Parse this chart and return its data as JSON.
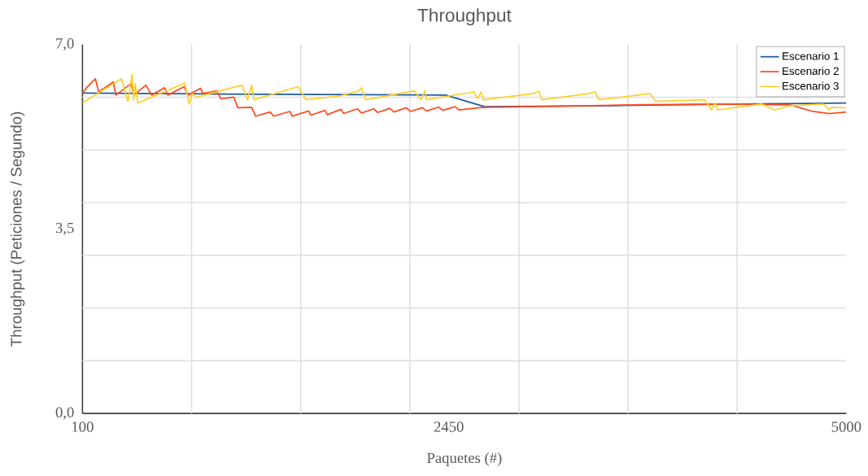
{
  "chart_data": {
    "type": "line",
    "title": "Throughput",
    "xlabel": "Paquetes (#)",
    "ylabel": "Throughput (Peticiones / Segundo)",
    "xlim": [
      100,
      5000
    ],
    "ylim": [
      0,
      7
    ],
    "xticks": [
      100,
      {
        "value": 800,
        "label": null
      },
      {
        "value": 1500,
        "label": null
      },
      {
        "value": 2200,
        "label": null
      },
      2450,
      {
        "value": 2900,
        "label": null
      },
      {
        "value": 3600,
        "label": null
      },
      {
        "value": 4300,
        "label": null
      },
      5000
    ],
    "yticks": [
      {
        "value": 0,
        "label": "0,0"
      },
      {
        "value": 1,
        "label": null
      },
      {
        "value": 2,
        "label": null
      },
      {
        "value": 3,
        "label": null
      },
      {
        "value": 3.5,
        "label": "3,5"
      },
      {
        "value": 4,
        "label": null
      },
      {
        "value": 5,
        "label": null
      },
      {
        "value": 6,
        "label": null
      },
      {
        "value": 7,
        "label": "7,0"
      }
    ],
    "grid": true,
    "legend": "top right",
    "marker": "none",
    "line_style": "solid",
    "series": [
      {
        "name": "Escenario 1",
        "color": "#1f5aa6",
        "x": [
          100,
          1000,
          2430,
          2680,
          3500,
          4300,
          5000
        ],
        "values": [
          6.08,
          6.06,
          6.04,
          5.82,
          5.84,
          5.87,
          5.89
        ]
      },
      {
        "name": "Escenario 2",
        "color": "#ff4b1f",
        "x": [
          100,
          126,
          152,
          183,
          204,
          298,
          314,
          413,
          429,
          507,
          544,
          627,
          648,
          752,
          778,
          857,
          872,
          961,
          987,
          1071,
          1097,
          1185,
          1211,
          1305,
          1326,
          1431,
          1446,
          1551,
          1566,
          1655,
          1671,
          1759,
          1775,
          1864,
          1890,
          1968,
          1994,
          2072,
          2098,
          2177,
          2203,
          2281,
          2307,
          2385,
          2412,
          2490,
          2516,
          2646,
          2700,
          3377,
          3742,
          4300,
          4645,
          4786,
          4890,
          5000
        ],
        "values": [
          6.07,
          6.18,
          6.26,
          6.35,
          6.1,
          6.29,
          6.04,
          6.26,
          6.04,
          6.23,
          6.04,
          6.18,
          6.04,
          6.2,
          6.04,
          6.17,
          6.07,
          6.12,
          5.97,
          6.0,
          5.8,
          5.81,
          5.64,
          5.72,
          5.64,
          5.73,
          5.64,
          5.74,
          5.66,
          5.75,
          5.67,
          5.77,
          5.69,
          5.78,
          5.7,
          5.78,
          5.71,
          5.79,
          5.72,
          5.8,
          5.73,
          5.8,
          5.74,
          5.81,
          5.75,
          5.82,
          5.76,
          5.8,
          5.81,
          5.84,
          5.86,
          5.87,
          5.85,
          5.73,
          5.69,
          5.72
        ]
      },
      {
        "name": "Escenario 3",
        "color": "#ffd02a",
        "x": [
          100,
          350,
          392,
          418,
          429,
          439,
          455,
          757,
          784,
          804,
          831,
          1123,
          1159,
          1185,
          1201,
          1483,
          1535,
          1759,
          1874,
          1890,
          1916,
          2229,
          2271,
          2297,
          2307,
          2610,
          2636,
          2657,
          2673,
          2996,
          3027,
          3048,
          3351,
          3388,
          3413,
          3742,
          3779,
          4092,
          4134,
          4160,
          4175,
          4457,
          4541,
          4645,
          4854,
          4890,
          4906,
          4995
        ],
        "values": [
          5.89,
          6.35,
          5.92,
          6.43,
          5.95,
          6.26,
          5.89,
          6.27,
          5.87,
          6.07,
          6.0,
          6.23,
          5.95,
          6.23,
          5.95,
          6.2,
          5.95,
          6.03,
          6.12,
          6.18,
          5.95,
          6.12,
          5.95,
          6.12,
          5.95,
          6.1,
          5.97,
          6.1,
          5.95,
          6.07,
          6.12,
          5.95,
          6.07,
          6.1,
          5.95,
          6.07,
          5.92,
          5.95,
          5.76,
          5.89,
          5.76,
          5.87,
          5.76,
          5.84,
          5.87,
          5.76,
          5.81,
          5.8
        ]
      }
    ]
  }
}
